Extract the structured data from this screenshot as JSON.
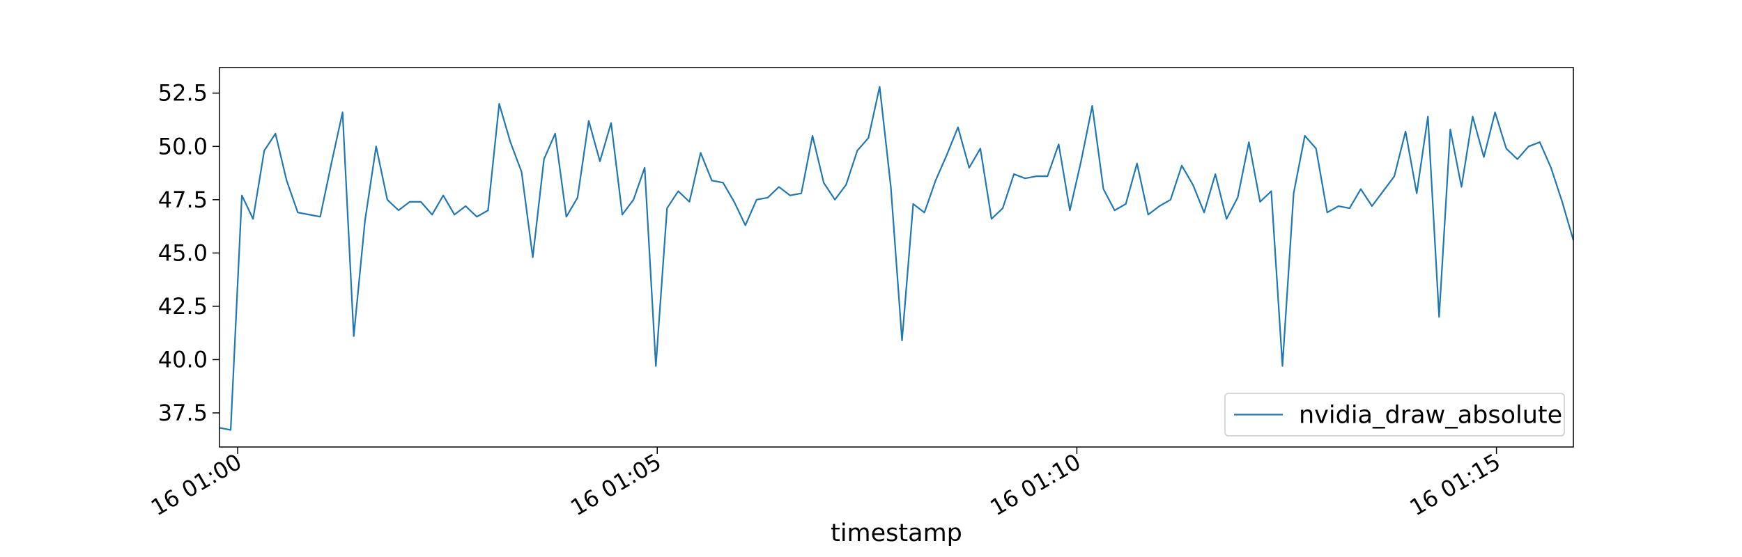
{
  "chart_data": {
    "type": "line",
    "title": "",
    "xlabel": "timestamp",
    "ylabel": "",
    "grid": false,
    "legend_position": "lower-right",
    "ylim": [
      35.9,
      53.7
    ],
    "xlim_seconds": [
      -13,
      955
    ],
    "xlim_note": "seconds relative to 16 01:00:00",
    "yticks": [
      {
        "value": 37.5,
        "label": "37.5"
      },
      {
        "value": 40.0,
        "label": "40.0"
      },
      {
        "value": 42.5,
        "label": "42.5"
      },
      {
        "value": 45.0,
        "label": "45.0"
      },
      {
        "value": 47.5,
        "label": "47.5"
      },
      {
        "value": 50.0,
        "label": "50.0"
      },
      {
        "value": 52.5,
        "label": "52.5"
      }
    ],
    "xticks": [
      {
        "value": 0,
        "label": "16 01:00"
      },
      {
        "value": 300,
        "label": "16 01:05"
      },
      {
        "value": 600,
        "label": "16 01:10"
      },
      {
        "value": 900,
        "label": "16 01:15"
      }
    ],
    "series": [
      {
        "name": "nvidia_draw_absolute",
        "color": "#1f77b4",
        "x_start": -13,
        "x_step": 8,
        "values": [
          36.8,
          36.7,
          47.7,
          46.6,
          49.8,
          50.6,
          48.4,
          46.9,
          46.8,
          46.7,
          49.2,
          51.6,
          41.1,
          46.5,
          50.0,
          47.5,
          47.0,
          47.4,
          47.4,
          46.8,
          47.7,
          46.8,
          47.2,
          46.7,
          47.0,
          52.0,
          50.2,
          48.8,
          44.8,
          49.4,
          50.6,
          46.7,
          47.6,
          51.2,
          49.3,
          51.1,
          46.8,
          47.5,
          49.0,
          39.7,
          47.1,
          47.9,
          47.4,
          49.7,
          48.4,
          48.3,
          47.4,
          46.3,
          47.5,
          47.6,
          48.1,
          47.7,
          47.8,
          50.5,
          48.3,
          47.5,
          48.2,
          49.8,
          50.4,
          52.8,
          48.1,
          40.9,
          47.3,
          46.9,
          48.4,
          49.6,
          50.9,
          49.0,
          49.9,
          46.6,
          47.1,
          48.7,
          48.5,
          48.6,
          48.6,
          50.1,
          47.0,
          49.3,
          51.9,
          48.0,
          47.0,
          47.3,
          49.2,
          46.8,
          47.2,
          47.5,
          49.1,
          48.2,
          46.9,
          48.7,
          46.6,
          47.6,
          50.2,
          47.4,
          47.9,
          39.7,
          47.8,
          50.5,
          49.9,
          46.9,
          47.2,
          47.1,
          48.0,
          47.2,
          47.9,
          48.6,
          50.7,
          47.8,
          51.4,
          42.0,
          50.8,
          48.1,
          51.4,
          49.5,
          51.6,
          49.9,
          49.4,
          50.0,
          50.2,
          49.0,
          47.4,
          45.6
        ]
      }
    ]
  }
}
